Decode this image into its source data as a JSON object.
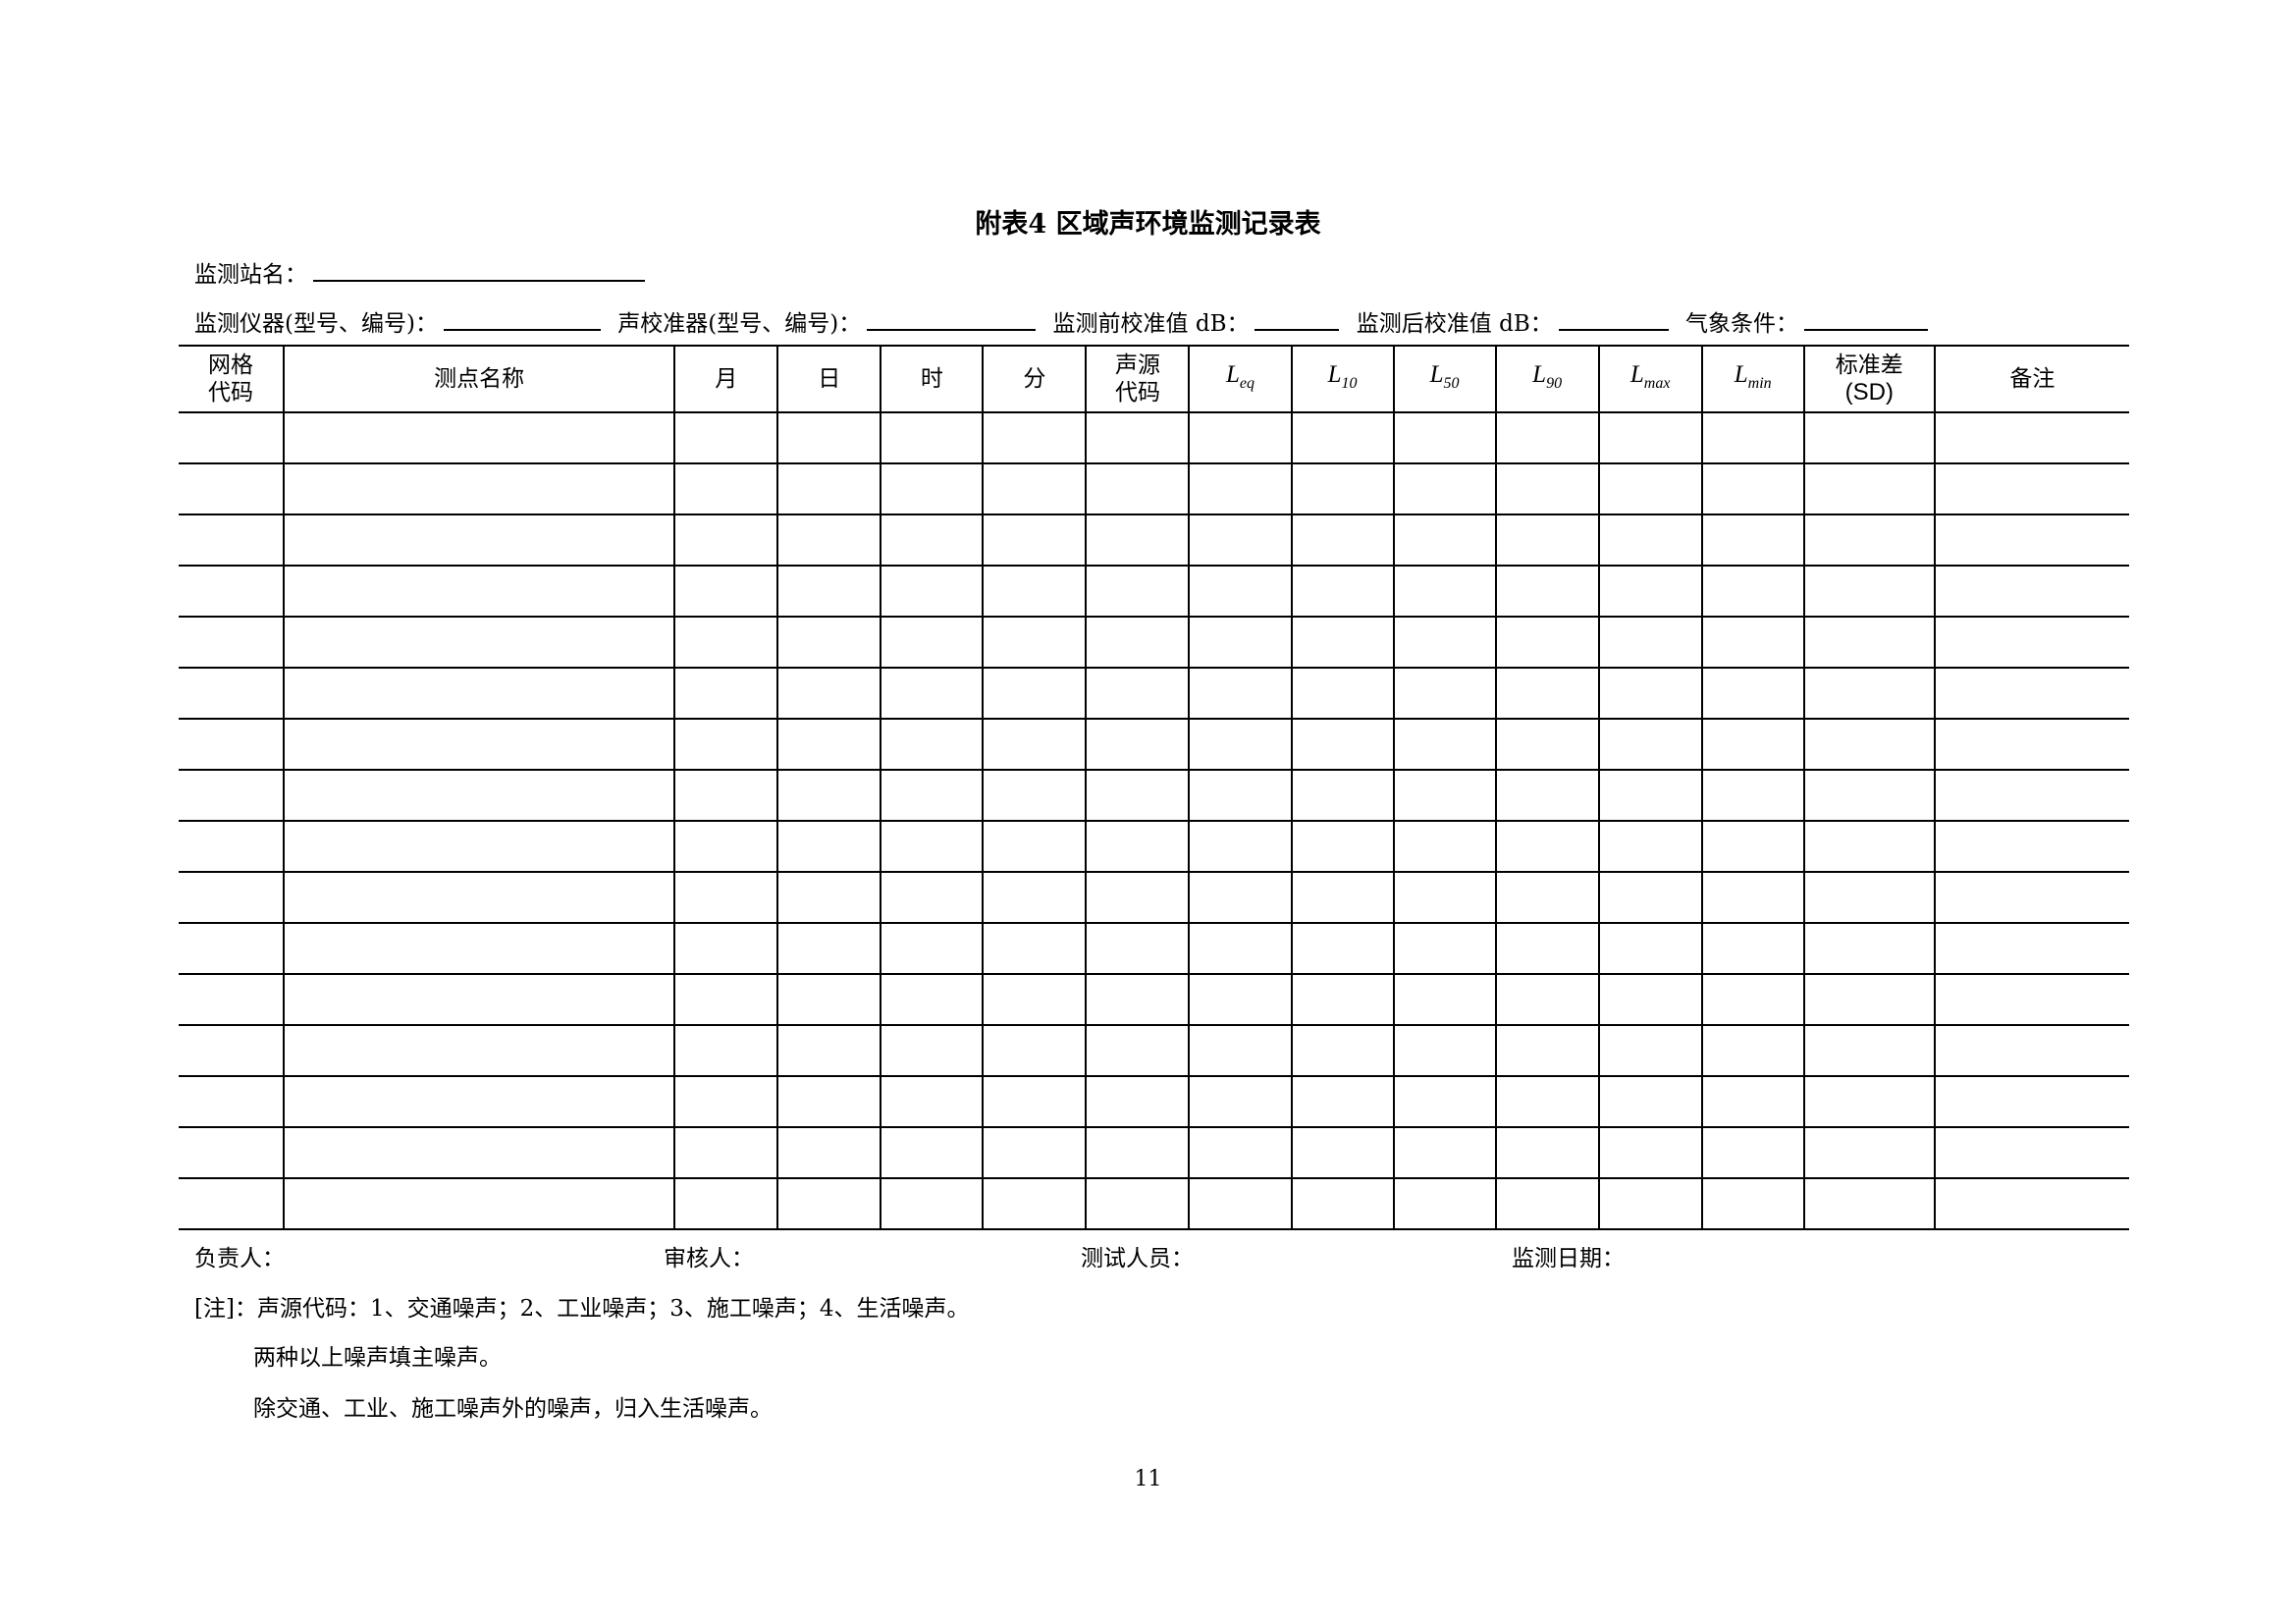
{
  "title": "附表4  区域声环境监测记录表",
  "fields": {
    "station_label": "监测站名：",
    "instrument_label": "监测仪器(型号、编号)：",
    "calibrator_label": "声校准器(型号、编号)：",
    "pre_cal_label": "监测前校准值 dB：",
    "post_cal_label": "监测后校准值 dB：",
    "weather_label": "气象条件："
  },
  "table": {
    "headers": [
      {
        "line1": "网格",
        "line2": "代码"
      },
      {
        "text": "测点名称"
      },
      {
        "text": "月"
      },
      {
        "text": "日"
      },
      {
        "text": "时"
      },
      {
        "text": "分"
      },
      {
        "line1": "声源",
        "line2": "代码"
      },
      {
        "main": "L",
        "sub": "eq"
      },
      {
        "main": "L",
        "sub": "10"
      },
      {
        "main": "L",
        "sub": "50"
      },
      {
        "main": "L",
        "sub": "90"
      },
      {
        "main": "L",
        "sub": "max"
      },
      {
        "main": "L",
        "sub": "min"
      },
      {
        "line1": "标准差",
        "line2": "(SD)"
      },
      {
        "text": "备注"
      }
    ],
    "empty_rows": 16
  },
  "signatures": {
    "responsible": "负责人：",
    "reviewer": "审核人：",
    "tester": "测试人员：",
    "date": "监测日期："
  },
  "notes": [
    "[注]：声源代码：1、交通噪声；2、工业噪声；3、施工噪声；4、生活噪声。",
    "两种以上噪声填主噪声。",
    "除交通、工业、施工噪声外的噪声，归入生活噪声。"
  ],
  "page_number": "11"
}
